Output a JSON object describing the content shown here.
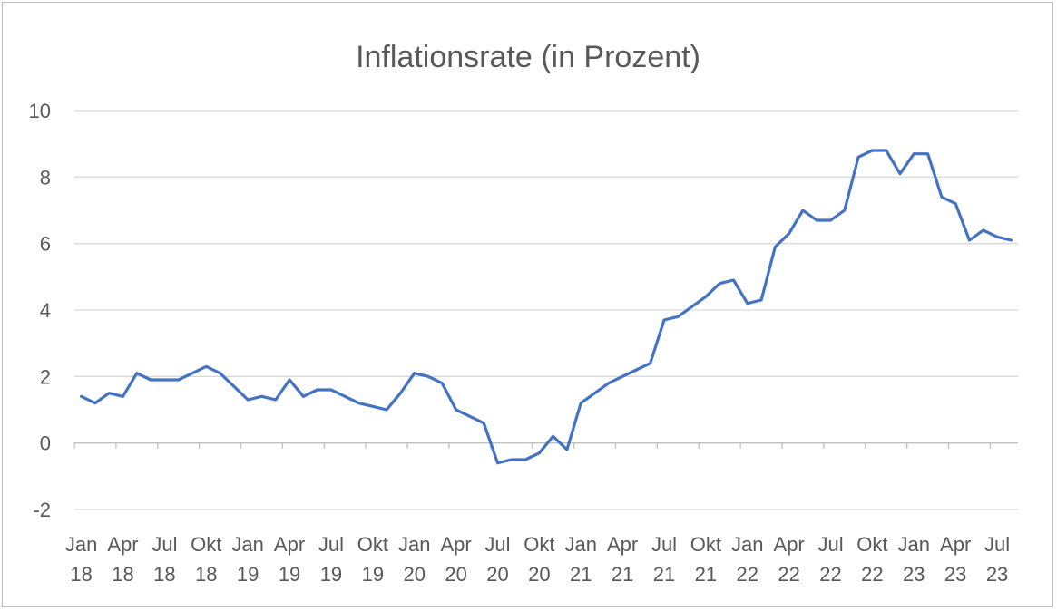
{
  "chart_data": {
    "type": "line",
    "title": "Inflationsrate (in Prozent)",
    "xlabel": "",
    "ylabel": "",
    "ylim": [
      -2,
      10
    ],
    "yticks": [
      "10",
      "8",
      "6",
      "4",
      "2",
      "0",
      "-2"
    ],
    "grid": true,
    "legend": "none",
    "x_tick_labels": [
      [
        "Jan",
        "18"
      ],
      [
        "Apr",
        "18"
      ],
      [
        "Jul",
        "18"
      ],
      [
        "Okt",
        "18"
      ],
      [
        "Jan",
        "19"
      ],
      [
        "Apr",
        "19"
      ],
      [
        "Jul",
        "19"
      ],
      [
        "Okt",
        "19"
      ],
      [
        "Jan",
        "20"
      ],
      [
        "Apr",
        "20"
      ],
      [
        "Jul",
        "20"
      ],
      [
        "Okt",
        "20"
      ],
      [
        "Jan",
        "21"
      ],
      [
        "Apr",
        "21"
      ],
      [
        "Jul",
        "21"
      ],
      [
        "Okt",
        "21"
      ],
      [
        "Jan",
        "22"
      ],
      [
        "Apr",
        "22"
      ],
      [
        "Jul",
        "22"
      ],
      [
        "Okt",
        "22"
      ],
      [
        "Jan",
        "23"
      ],
      [
        "Apr",
        "23"
      ],
      [
        "Jul",
        "23"
      ]
    ],
    "x": [
      "Jan 18",
      "Feb 18",
      "Mär 18",
      "Apr 18",
      "Mai 18",
      "Jun 18",
      "Jul 18",
      "Aug 18",
      "Sep 18",
      "Okt 18",
      "Nov 18",
      "Dez 18",
      "Jan 19",
      "Feb 19",
      "Mär 19",
      "Apr 19",
      "Mai 19",
      "Jun 19",
      "Jul 19",
      "Aug 19",
      "Sep 19",
      "Okt 19",
      "Nov 19",
      "Dez 19",
      "Jan 20",
      "Feb 20",
      "Mär 20",
      "Apr 20",
      "Mai 20",
      "Jun 20",
      "Jul 20",
      "Aug 20",
      "Sep 20",
      "Okt 20",
      "Nov 20",
      "Dez 20",
      "Jan 21",
      "Feb 21",
      "Mär 21",
      "Apr 21",
      "Mai 21",
      "Jun 21",
      "Jul 21",
      "Aug 21",
      "Sep 21",
      "Okt 21",
      "Nov 21",
      "Dez 21",
      "Jan 22",
      "Feb 22",
      "Mär 22",
      "Apr 22",
      "Mai 22",
      "Jun 22",
      "Jul 22",
      "Aug 22",
      "Sep 22",
      "Okt 22",
      "Nov 22",
      "Dez 22",
      "Jan 23",
      "Feb 23",
      "Mär 23",
      "Apr 23",
      "Mai 23",
      "Jun 23",
      "Jul 23",
      "Aug 23"
    ],
    "series": [
      {
        "color": "#4472c4",
        "values": [
          1.4,
          1.2,
          1.5,
          1.4,
          2.1,
          1.9,
          1.9,
          1.9,
          2.1,
          2.3,
          2.1,
          1.7,
          1.3,
          1.4,
          1.3,
          1.9,
          1.4,
          1.6,
          1.6,
          1.4,
          1.2,
          1.1,
          1.0,
          1.5,
          2.1,
          2.0,
          1.8,
          1.0,
          0.8,
          0.6,
          -0.6,
          -0.5,
          -0.5,
          -0.3,
          0.2,
          -0.2,
          1.2,
          1.5,
          1.8,
          2.0,
          2.2,
          2.4,
          3.7,
          3.8,
          4.1,
          4.4,
          4.8,
          4.9,
          4.2,
          4.3,
          5.9,
          6.3,
          7.0,
          6.7,
          6.7,
          7.0,
          8.6,
          8.8,
          8.8,
          8.1,
          8.7,
          8.7,
          7.4,
          7.2,
          6.1,
          6.4,
          6.2,
          6.1
        ]
      }
    ]
  }
}
